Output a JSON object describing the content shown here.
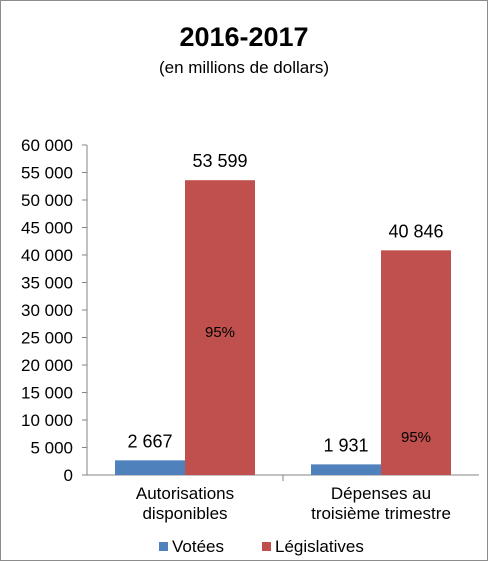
{
  "chart_data": {
    "type": "bar",
    "title": "2016-2017",
    "subtitle": "(en millions de dollars)",
    "categories": [
      "Autorisations disponibles",
      "Dépenses au troisième trimestre"
    ],
    "category_lines": [
      [
        "Autorisations",
        "disponibles"
      ],
      [
        "Dépenses au",
        "troisième trimestre"
      ]
    ],
    "series": [
      {
        "name": "Votées",
        "color": "#4f81bd",
        "values": [
          2667,
          1931
        ],
        "labels": [
          "2 667",
          "1 931"
        ]
      },
      {
        "name": "Législatives",
        "color": "#c0504d",
        "values": [
          53599,
          40846
        ],
        "labels": [
          "53 599",
          "40 846"
        ],
        "share_labels": [
          "95%",
          "95%"
        ]
      }
    ],
    "ylim": [
      0,
      60000
    ],
    "ytick_values": [
      0,
      5000,
      10000,
      15000,
      20000,
      25000,
      30000,
      35000,
      40000,
      45000,
      50000,
      55000,
      60000
    ],
    "ytick_labels": [
      "0",
      "5 000",
      "10 000",
      "15 000",
      "20 000",
      "25 000",
      "30 000",
      "35 000",
      "40 000",
      "45 000",
      "50 000",
      "55 000",
      "60 000"
    ],
    "grid": false,
    "legend_position": "bottom"
  }
}
